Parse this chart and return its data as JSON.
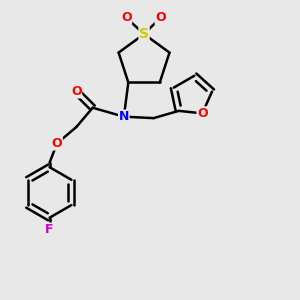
{
  "bg_color": "#e8e8e8",
  "bond_color": "#000000",
  "bond_width": 1.8,
  "atom_colors": {
    "S": "#cccc00",
    "O": "#ff0000",
    "N": "#0000ff",
    "F": "#cc00cc",
    "C": "#000000"
  },
  "font_size": 9
}
